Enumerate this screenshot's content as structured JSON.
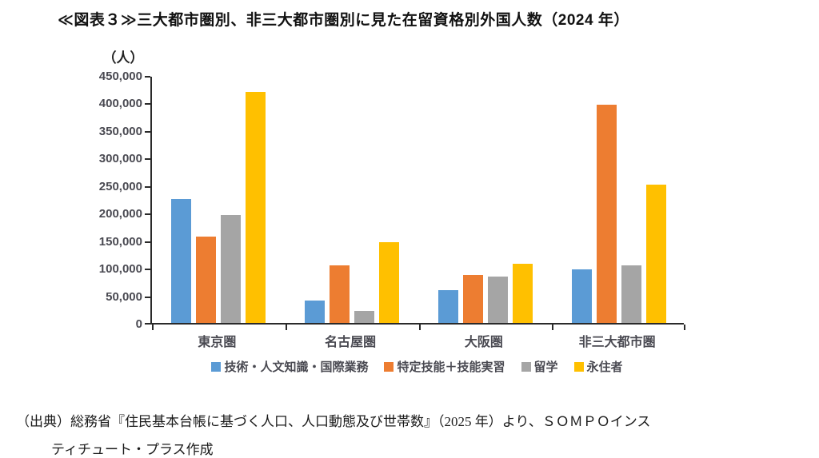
{
  "chart_data": {
    "type": "bar",
    "title": "≪図表３≫三大都市圏別、非三大都市圏別に見た在留資格別外国人数（2024 年）",
    "unit_label": "（人）",
    "categories": [
      "東京圏",
      "名古屋圏",
      "大阪圏",
      "非三大都市圏"
    ],
    "series": [
      {
        "name": "技術・人文知識・国際業務",
        "color": "#5B9BD5",
        "values": [
          225000,
          40000,
          60000,
          97000
        ]
      },
      {
        "name": "特定技能＋技能実習",
        "color": "#ED7D31",
        "values": [
          157000,
          105000,
          87000,
          396000
        ]
      },
      {
        "name": "留学",
        "color": "#A5A5A5",
        "values": [
          196000,
          22000,
          84000,
          104000
        ]
      },
      {
        "name": "永住者",
        "color": "#FFC000",
        "values": [
          420000,
          146000,
          107000,
          251000
        ]
      }
    ],
    "ylim": [
      0,
      450000
    ],
    "y_tick_step": 50000,
    "y_tick_labels": [
      "450,000",
      "400,000",
      "350,000",
      "300,000",
      "250,000",
      "200,000",
      "150,000",
      "100,000",
      "50,000",
      "0"
    ],
    "grid": false,
    "legend_position": "bottom",
    "axis_color": "#2a2a2a"
  },
  "source": {
    "line1": "（出典）総務省『住民基本台帳に基づく人口、人口動態及び世帯数』（2025 年）より、ＳＯＭＰＯインス",
    "line2": "ティチュート・プラス作成"
  }
}
